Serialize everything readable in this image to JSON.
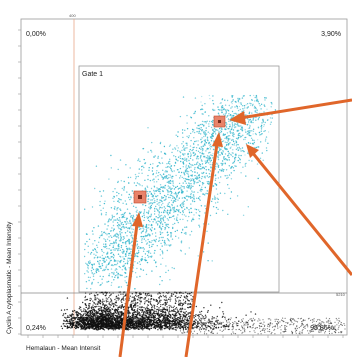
{
  "chart_data": {
    "type": "scatter",
    "xlabel": "Hemalaun - Mean Intensit",
    "ylabel": "Cyclin A cytoplasmatic - Mean Intensity",
    "quadrant_labels": {
      "upper_left": "0,00%",
      "upper_right": "3,90%",
      "lower_left": "0,24%",
      "lower_right": "95,86%"
    },
    "gate": {
      "label": "Gate 1"
    },
    "threshold_tick_labels": {
      "x": "400",
      "y": "5210"
    },
    "series": [
      {
        "role": "gated events",
        "color": "#35b6cc"
      },
      {
        "role": "ungated events",
        "color": "#111111"
      }
    ],
    "highlighted_points": 2,
    "arrows": 4
  },
  "colors": {
    "accent_orange": "#e0662a",
    "highlight_fill": "#e8836a",
    "frame": "#999999"
  }
}
